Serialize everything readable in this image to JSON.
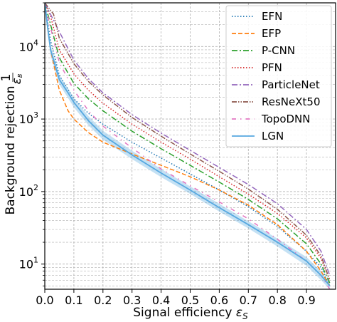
{
  "chart_data": {
    "type": "line",
    "xlabel": "Signal efficiency",
    "xlabel_symbol": "ε",
    "xlabel_sub": "S",
    "ylabel": "Background rejection",
    "ylabel_frac_num": "1",
    "ylabel_frac_den": "ε",
    "ylabel_frac_den_sub": "B",
    "x_ticks": [
      "0.0",
      "0.1",
      "0.2",
      "0.3",
      "0.4",
      "0.5",
      "0.6",
      "0.7",
      "0.8",
      "0.9"
    ],
    "y_tick_labels": [
      {
        "base": "10",
        "exp": "1",
        "value": 10
      },
      {
        "base": "10",
        "exp": "2",
        "value": 100
      },
      {
        "base": "10",
        "exp": "3",
        "value": 1000
      },
      {
        "base": "10",
        "exp": "4",
        "value": 10000
      }
    ],
    "xlim": [
      0.0,
      1.0
    ],
    "ylim": [
      4.5,
      40000
    ],
    "yscale": "log",
    "grid": true,
    "legend_position": "top-right",
    "series": [
      {
        "name": "EFN",
        "color": "#1f77b4",
        "dash": "dotted",
        "x": [
          0.0,
          0.02,
          0.05,
          0.1,
          0.15,
          0.2,
          0.3,
          0.4,
          0.5,
          0.6,
          0.7,
          0.8,
          0.9,
          0.95,
          0.98
        ],
        "y": [
          40000,
          12000,
          4000,
          1900,
          1200,
          850,
          480,
          290,
          175,
          105,
          62,
          33,
          15,
          9,
          5
        ]
      },
      {
        "name": "EFP",
        "color": "#ff7f0e",
        "dash": "dashed",
        "x": [
          0.0,
          0.02,
          0.05,
          0.08,
          0.1,
          0.15,
          0.2,
          0.3,
          0.4,
          0.5,
          0.6,
          0.7,
          0.8,
          0.9,
          0.95,
          0.98
        ],
        "y": [
          40000,
          9000,
          2500,
          1300,
          1000,
          650,
          480,
          330,
          230,
          160,
          105,
          65,
          35,
          15,
          8,
          5
        ]
      },
      {
        "name": "P-CNN",
        "color": "#2ca02c",
        "dash": "dashdot",
        "x": [
          0.0,
          0.02,
          0.05,
          0.1,
          0.15,
          0.2,
          0.3,
          0.4,
          0.5,
          0.6,
          0.7,
          0.8,
          0.9,
          0.95,
          0.98
        ],
        "y": [
          40000,
          20000,
          7000,
          3100,
          1900,
          1300,
          680,
          390,
          230,
          135,
          78,
          42,
          19,
          10,
          5.5
        ]
      },
      {
        "name": "PFN",
        "color": "#d62728",
        "dash": "dotted",
        "x": [
          0.0,
          0.02,
          0.05,
          0.1,
          0.15,
          0.2,
          0.3,
          0.4,
          0.5,
          0.6,
          0.7,
          0.8,
          0.9,
          0.95,
          0.98
        ],
        "y": [
          40000,
          26000,
          9000,
          4200,
          2500,
          1650,
          850,
          480,
          280,
          160,
          92,
          50,
          23,
          12,
          6
        ]
      },
      {
        "name": "ParticleNet",
        "color": "#9467bd",
        "dash": "dashdot",
        "x": [
          0.0,
          0.05,
          0.1,
          0.15,
          0.2,
          0.3,
          0.4,
          0.5,
          0.6,
          0.7,
          0.8,
          0.9,
          0.95,
          0.98
        ],
        "y": [
          40000,
          16000,
          6500,
          3600,
          2300,
          1150,
          640,
          370,
          215,
          125,
          68,
          30,
          15,
          7
        ]
      },
      {
        "name": "ResNeXt50",
        "color": "#8c564b",
        "dash": "dashdotdot",
        "x": [
          0.0,
          0.03,
          0.05,
          0.1,
          0.15,
          0.2,
          0.3,
          0.4,
          0.5,
          0.6,
          0.7,
          0.8,
          0.9,
          0.95,
          0.98
        ],
        "y": [
          40000,
          28000,
          13000,
          5800,
          3300,
          2150,
          1050,
          580,
          330,
          190,
          108,
          57,
          25,
          13,
          6
        ]
      },
      {
        "name": "TopoDNN",
        "color": "#e377c2",
        "dash": "dashdotsparse",
        "x": [
          0.0,
          0.02,
          0.05,
          0.1,
          0.15,
          0.2,
          0.3,
          0.4,
          0.5,
          0.6,
          0.7,
          0.8,
          0.9,
          0.95,
          0.98
        ],
        "y": [
          40000,
          18000,
          6000,
          2500,
          1300,
          800,
          400,
          205,
          120,
          72,
          42,
          22,
          11,
          7,
          4.5
        ]
      },
      {
        "name": "LGN",
        "color": "#56a8e0",
        "dash": "solid",
        "band": true,
        "x": [
          0.0,
          0.01,
          0.02,
          0.05,
          0.08,
          0.1,
          0.15,
          0.2,
          0.3,
          0.4,
          0.5,
          0.6,
          0.7,
          0.8,
          0.9,
          0.95,
          0.98
        ],
        "y": [
          40000,
          18000,
          9000,
          3500,
          2300,
          1700,
          950,
          600,
          320,
          180,
          105,
          60,
          35,
          20,
          11,
          7,
          5
        ],
        "y_low": [
          40000,
          15000,
          7500,
          3000,
          1950,
          1450,
          820,
          520,
          280,
          158,
          93,
          53,
          31,
          17.5,
          9.5,
          6,
          4.5
        ],
        "y_high": [
          40000,
          21000,
          10500,
          4000,
          2650,
          1950,
          1100,
          690,
          365,
          205,
          118,
          68,
          39,
          22.5,
          12.5,
          8,
          5.5
        ]
      }
    ]
  }
}
